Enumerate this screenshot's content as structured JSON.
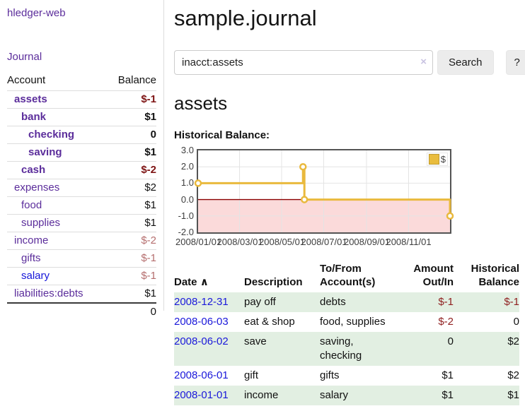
{
  "sidebar": {
    "app_title": "hledger-web",
    "journal_link": "Journal",
    "accounts": {
      "col_account": "Account",
      "col_balance": "Balance",
      "rows": [
        {
          "name": "assets",
          "depth": 1,
          "bold": true,
          "balance": "$-1"
        },
        {
          "name": "bank",
          "depth": 2,
          "bold": true,
          "balance": "$1"
        },
        {
          "name": "checking",
          "depth": 3,
          "bold": true,
          "balance": "0"
        },
        {
          "name": "saving",
          "depth": 3,
          "bold": true,
          "balance": "$1"
        },
        {
          "name": "cash",
          "depth": 2,
          "bold": true,
          "balance": "$-2"
        },
        {
          "name": "expenses",
          "depth": 1,
          "bold": false,
          "balance": "$2"
        },
        {
          "name": "food",
          "depth": 2,
          "bold": false,
          "balance": "$1"
        },
        {
          "name": "supplies",
          "depth": 2,
          "bold": false,
          "balance": "$1"
        },
        {
          "name": "income",
          "depth": 1,
          "bold": false,
          "balance": "$-2"
        },
        {
          "name": "gifts",
          "depth": 2,
          "bold": false,
          "balance": "$-1"
        },
        {
          "name": "salary",
          "depth": 2,
          "bold": false,
          "blue": true,
          "balance": "$-1"
        },
        {
          "name": "liabilities:debts",
          "depth": 1,
          "bold": false,
          "balance": "$1"
        }
      ],
      "total": "0"
    }
  },
  "main": {
    "title": "sample.journal",
    "search": {
      "value": "inacct:assets",
      "clear_icon": "×",
      "button_label": "Search",
      "help_label": "?"
    },
    "account_heading": "assets",
    "chart": {
      "label": "Historical Balance:",
      "legend_label": "$",
      "type": "step-line",
      "series_color": "#e9b93d",
      "negative_fill": "#fbdada",
      "zero_line_color": "#8b0000",
      "grid_color": "#e4e4e4",
      "y_ticks": [
        3.0,
        2.0,
        1.0,
        0.0,
        -1.0,
        -2.0
      ],
      "x_range": [
        "2008-01-01",
        "2008-12-31"
      ],
      "x_ticks": [
        {
          "date": "2008-01-01",
          "label": "2008/01/01"
        },
        {
          "date": "2008-03-01",
          "label": "2008/03/01"
        },
        {
          "date": "2008-05-01",
          "label": "2008/05/01"
        },
        {
          "date": "2008-07-01",
          "label": "2008/07/01"
        },
        {
          "date": "2008-09-01",
          "label": "2008/09/01"
        },
        {
          "date": "2008-11-01",
          "label": "2008/11/01"
        }
      ],
      "points": [
        {
          "date": "2008-01-01",
          "value": 1
        },
        {
          "date": "2008-06-01",
          "value": 2
        },
        {
          "date": "2008-06-03",
          "value": 0
        },
        {
          "date": "2008-12-31",
          "value": -1
        }
      ]
    },
    "register": {
      "headers": {
        "date": "Date",
        "sort_icon": "∧",
        "description": "Description",
        "accounts": "To/From Account(s)",
        "amount": "Amount Out/In",
        "balance": "Historical Balance"
      },
      "rows": [
        {
          "date": "2008-12-31",
          "description": "pay off",
          "accounts": "debts",
          "amount": "$-1",
          "balance": "$-1"
        },
        {
          "date": "2008-06-03",
          "description": "eat & shop",
          "accounts": "food, supplies",
          "amount": "$-2",
          "balance": "0"
        },
        {
          "date": "2008-06-02",
          "description": "save",
          "accounts": "saving, checking",
          "amount": "0",
          "balance": "$2"
        },
        {
          "date": "2008-06-01",
          "description": "gift",
          "accounts": "gifts",
          "amount": "$1",
          "balance": "$2"
        },
        {
          "date": "2008-01-01",
          "description": "income",
          "accounts": "salary",
          "amount": "$1",
          "balance": "$1"
        }
      ]
    }
  }
}
